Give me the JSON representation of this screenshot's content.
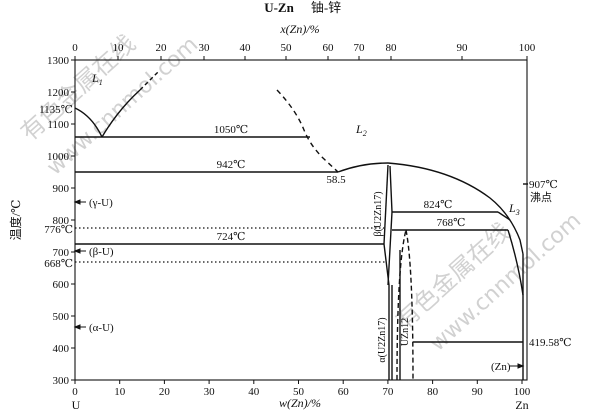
{
  "title": {
    "system": "U-Zn",
    "chinese": "铀-锌"
  },
  "top_axis": {
    "label": "x(Zn)/%",
    "ticks": [
      "0",
      "10",
      "20",
      "30",
      "40",
      "50",
      "60",
      "70",
      "80",
      "90",
      "100"
    ]
  },
  "bottom_axis": {
    "label": "w(Zn)/%",
    "ticks": [
      "0",
      "10",
      "20",
      "30",
      "40",
      "50",
      "60",
      "70",
      "80",
      "90",
      "100"
    ],
    "left_element": "U",
    "right_element": "Zn"
  },
  "left_axis": {
    "label": "温度/℃",
    "ticks": [
      "300",
      "400",
      "500",
      "600",
      "700",
      "800",
      "900",
      "1000",
      "1100",
      "1200",
      "1300"
    ],
    "special_ticks": [
      "1135℃",
      "776℃",
      "668℃"
    ]
  },
  "right_labels": {
    "boiling_value": "907℃",
    "boiling_word": "沸点",
    "melting": "419.58℃"
  },
  "isotherms": {
    "t1050": "1050℃",
    "t942": "942℃",
    "t824": "824℃",
    "t768": "768℃",
    "t724": "724℃"
  },
  "point_labels": {
    "eutectic": "58.5"
  },
  "phase_labels": {
    "L1": "L",
    "L1_sub": "1",
    "L2": "L",
    "L2_sub": "2",
    "L3": "L",
    "L3_sub": "3",
    "gamma_u": "(γ-U)",
    "beta_u": "(β-U)",
    "alpha_u": "(α-U)",
    "zn": "(Zn)",
    "beta_phase": "β(U2Zn17)",
    "alpha_phase": "α(U2Zn17)",
    "uzn12": "UZn12"
  },
  "watermark": {
    "text1": "有色金属在线",
    "text2": "www.cnnmol.com"
  }
}
